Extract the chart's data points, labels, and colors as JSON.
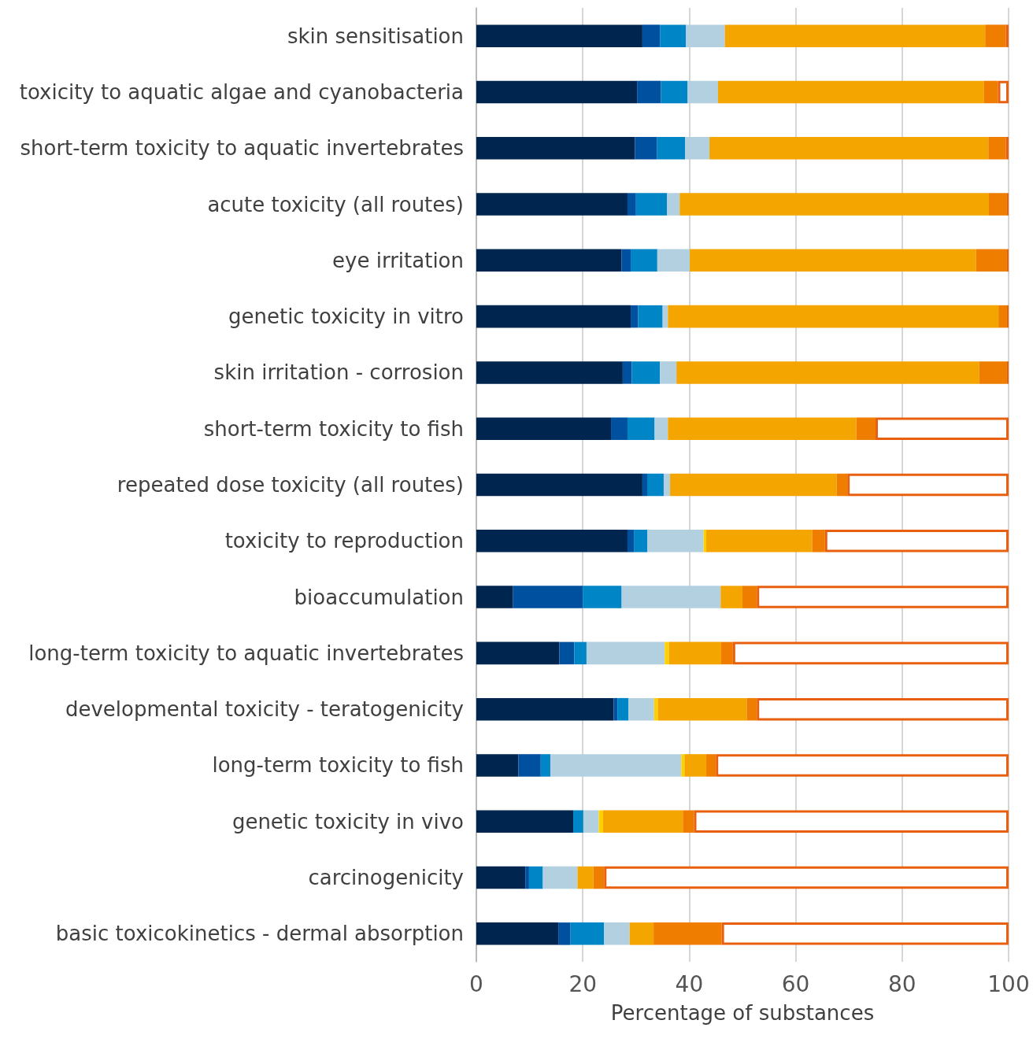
{
  "chart_data": {
    "type": "bar",
    "orientation": "horizontal",
    "stacked": true,
    "xlabel": "Percentage of substances",
    "categories": [
      "skin sensitisation",
      "toxicity to aquatic algae and cyanobacteria",
      "short-term toxicity to aquatic invertebrates",
      "acute toxicity (all routes)",
      "eye irritation",
      "genetic toxicity in vitro",
      "skin irritation - corrosion",
      "short-term toxicity to fish",
      "repeated dose toxicity (all routes)",
      "toxicity to reproduction",
      "bioaccumulation",
      "long-term toxicity to aquatic invertebrates",
      "developmental toxicity - teratogenicity",
      "long-term toxicity to fish",
      "genetic toxicity in vivo",
      "carcinogenicity",
      "basic toxicokinetics - dermal absorption"
    ],
    "series": [
      {
        "color": "#00264f",
        "values": [
          31.2,
          30.2,
          29.8,
          28.4,
          27.3,
          29.0,
          27.5,
          25.3,
          31.2,
          28.4,
          6.9,
          15.6,
          25.8,
          7.9,
          18.2,
          9.2,
          15.4
        ]
      },
      {
        "color": "#0050a0",
        "values": [
          3.3,
          4.5,
          4.1,
          1.6,
          1.7,
          1.4,
          1.7,
          3.1,
          0.9,
          1.2,
          13.1,
          2.8,
          0.7,
          4.2,
          null,
          0.7,
          2.3
        ]
      },
      {
        "color": "#0085c6",
        "values": [
          4.9,
          5.0,
          5.3,
          5.8,
          5.0,
          4.6,
          5.3,
          5.1,
          3.1,
          2.5,
          7.3,
          2.3,
          2.1,
          1.8,
          1.9,
          2.6,
          6.3
        ]
      },
      {
        "color": "#b3d0e0",
        "values": [
          7.3,
          5.7,
          4.6,
          2.4,
          6.1,
          1.0,
          3.1,
          2.5,
          1.2,
          10.6,
          18.6,
          14.7,
          4.8,
          24.6,
          2.9,
          6.5,
          4.8
        ]
      },
      {
        "color": "#ffd000",
        "values": [
          null,
          null,
          null,
          null,
          null,
          null,
          null,
          null,
          null,
          0.5,
          null,
          0.8,
          0.7,
          0.6,
          0.8,
          null,
          null
        ]
      },
      {
        "color": "#f5a500",
        "values": [
          48.9,
          50.0,
          52.4,
          58.1,
          53.8,
          62.1,
          56.9,
          35.4,
          31.3,
          19.9,
          4.1,
          9.8,
          16.7,
          4.1,
          15.0,
          3.0,
          4.5
        ]
      },
      {
        "color": "#ee7d00",
        "values": [
          3.9,
          2.6,
          3.3,
          3.4,
          5.8,
          1.6,
          5.2,
          3.6,
          2.0,
          2.4,
          2.7,
          2.2,
          1.9,
          1.8,
          2.1,
          2.0,
          12.8
        ]
      },
      {
        "color": "#e8600f",
        "values": [
          0.5,
          null,
          0.5,
          0.3,
          0.3,
          0.3,
          0.3,
          null,
          null,
          null,
          null,
          null,
          null,
          null,
          null,
          null,
          null
        ]
      },
      {
        "color": "#ffffff",
        "values": [
          null,
          2.0,
          null,
          null,
          null,
          null,
          null,
          25.0,
          30.3,
          34.5,
          47.3,
          51.8,
          47.3,
          55.0,
          59.1,
          76.0,
          53.9
        ]
      }
    ],
    "xlim": [
      0,
      100
    ],
    "xticks": [
      0,
      20,
      40,
      60,
      80,
      100
    ],
    "grid": "x"
  }
}
